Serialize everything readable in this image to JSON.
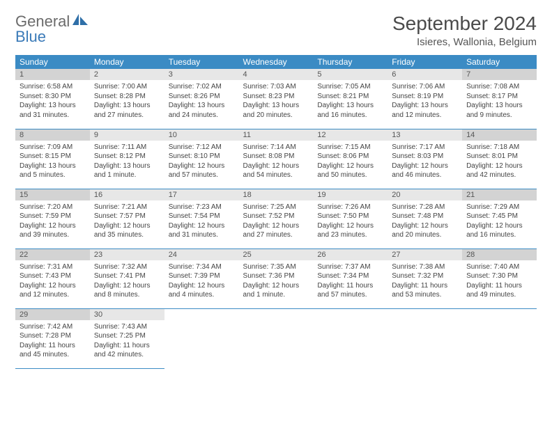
{
  "brand": {
    "part1": "General",
    "part2": "Blue"
  },
  "title": "September 2024",
  "location": "Isieres, Wallonia, Belgium",
  "colors": {
    "header_bg": "#3b8bc4",
    "header_text": "#ffffff",
    "daynum_bg": "#e7e7e7",
    "daynum_shaded_bg": "#d3d3d3",
    "border": "#3b8bc4",
    "text": "#444444",
    "title_text": "#4a4a4a",
    "brand_gray": "#6b6b6b",
    "brand_blue": "#3a7ab8"
  },
  "fonts": {
    "title_size_pt": 21,
    "location_size_pt": 11,
    "dayheader_size_pt": 9,
    "daynum_size_pt": 8,
    "cell_size_pt": 7.5
  },
  "dayNames": [
    "Sunday",
    "Monday",
    "Tuesday",
    "Wednesday",
    "Thursday",
    "Friday",
    "Saturday"
  ],
  "weeks": [
    [
      {
        "num": "1",
        "sunrise": "Sunrise: 6:58 AM",
        "sunset": "Sunset: 8:30 PM",
        "daylight": "Daylight: 13 hours and 31 minutes."
      },
      {
        "num": "2",
        "sunrise": "Sunrise: 7:00 AM",
        "sunset": "Sunset: 8:28 PM",
        "daylight": "Daylight: 13 hours and 27 minutes."
      },
      {
        "num": "3",
        "sunrise": "Sunrise: 7:02 AM",
        "sunset": "Sunset: 8:26 PM",
        "daylight": "Daylight: 13 hours and 24 minutes."
      },
      {
        "num": "4",
        "sunrise": "Sunrise: 7:03 AM",
        "sunset": "Sunset: 8:23 PM",
        "daylight": "Daylight: 13 hours and 20 minutes."
      },
      {
        "num": "5",
        "sunrise": "Sunrise: 7:05 AM",
        "sunset": "Sunset: 8:21 PM",
        "daylight": "Daylight: 13 hours and 16 minutes."
      },
      {
        "num": "6",
        "sunrise": "Sunrise: 7:06 AM",
        "sunset": "Sunset: 8:19 PM",
        "daylight": "Daylight: 13 hours and 12 minutes."
      },
      {
        "num": "7",
        "sunrise": "Sunrise: 7:08 AM",
        "sunset": "Sunset: 8:17 PM",
        "daylight": "Daylight: 13 hours and 9 minutes."
      }
    ],
    [
      {
        "num": "8",
        "sunrise": "Sunrise: 7:09 AM",
        "sunset": "Sunset: 8:15 PM",
        "daylight": "Daylight: 13 hours and 5 minutes."
      },
      {
        "num": "9",
        "sunrise": "Sunrise: 7:11 AM",
        "sunset": "Sunset: 8:12 PM",
        "daylight": "Daylight: 13 hours and 1 minute."
      },
      {
        "num": "10",
        "sunrise": "Sunrise: 7:12 AM",
        "sunset": "Sunset: 8:10 PM",
        "daylight": "Daylight: 12 hours and 57 minutes."
      },
      {
        "num": "11",
        "sunrise": "Sunrise: 7:14 AM",
        "sunset": "Sunset: 8:08 PM",
        "daylight": "Daylight: 12 hours and 54 minutes."
      },
      {
        "num": "12",
        "sunrise": "Sunrise: 7:15 AM",
        "sunset": "Sunset: 8:06 PM",
        "daylight": "Daylight: 12 hours and 50 minutes."
      },
      {
        "num": "13",
        "sunrise": "Sunrise: 7:17 AM",
        "sunset": "Sunset: 8:03 PM",
        "daylight": "Daylight: 12 hours and 46 minutes."
      },
      {
        "num": "14",
        "sunrise": "Sunrise: 7:18 AM",
        "sunset": "Sunset: 8:01 PM",
        "daylight": "Daylight: 12 hours and 42 minutes."
      }
    ],
    [
      {
        "num": "15",
        "sunrise": "Sunrise: 7:20 AM",
        "sunset": "Sunset: 7:59 PM",
        "daylight": "Daylight: 12 hours and 39 minutes."
      },
      {
        "num": "16",
        "sunrise": "Sunrise: 7:21 AM",
        "sunset": "Sunset: 7:57 PM",
        "daylight": "Daylight: 12 hours and 35 minutes."
      },
      {
        "num": "17",
        "sunrise": "Sunrise: 7:23 AM",
        "sunset": "Sunset: 7:54 PM",
        "daylight": "Daylight: 12 hours and 31 minutes."
      },
      {
        "num": "18",
        "sunrise": "Sunrise: 7:25 AM",
        "sunset": "Sunset: 7:52 PM",
        "daylight": "Daylight: 12 hours and 27 minutes."
      },
      {
        "num": "19",
        "sunrise": "Sunrise: 7:26 AM",
        "sunset": "Sunset: 7:50 PM",
        "daylight": "Daylight: 12 hours and 23 minutes."
      },
      {
        "num": "20",
        "sunrise": "Sunrise: 7:28 AM",
        "sunset": "Sunset: 7:48 PM",
        "daylight": "Daylight: 12 hours and 20 minutes."
      },
      {
        "num": "21",
        "sunrise": "Sunrise: 7:29 AM",
        "sunset": "Sunset: 7:45 PM",
        "daylight": "Daylight: 12 hours and 16 minutes."
      }
    ],
    [
      {
        "num": "22",
        "sunrise": "Sunrise: 7:31 AM",
        "sunset": "Sunset: 7:43 PM",
        "daylight": "Daylight: 12 hours and 12 minutes."
      },
      {
        "num": "23",
        "sunrise": "Sunrise: 7:32 AM",
        "sunset": "Sunset: 7:41 PM",
        "daylight": "Daylight: 12 hours and 8 minutes."
      },
      {
        "num": "24",
        "sunrise": "Sunrise: 7:34 AM",
        "sunset": "Sunset: 7:39 PM",
        "daylight": "Daylight: 12 hours and 4 minutes."
      },
      {
        "num": "25",
        "sunrise": "Sunrise: 7:35 AM",
        "sunset": "Sunset: 7:36 PM",
        "daylight": "Daylight: 12 hours and 1 minute."
      },
      {
        "num": "26",
        "sunrise": "Sunrise: 7:37 AM",
        "sunset": "Sunset: 7:34 PM",
        "daylight": "Daylight: 11 hours and 57 minutes."
      },
      {
        "num": "27",
        "sunrise": "Sunrise: 7:38 AM",
        "sunset": "Sunset: 7:32 PM",
        "daylight": "Daylight: 11 hours and 53 minutes."
      },
      {
        "num": "28",
        "sunrise": "Sunrise: 7:40 AM",
        "sunset": "Sunset: 7:30 PM",
        "daylight": "Daylight: 11 hours and 49 minutes."
      }
    ],
    [
      {
        "num": "29",
        "sunrise": "Sunrise: 7:42 AM",
        "sunset": "Sunset: 7:28 PM",
        "daylight": "Daylight: 11 hours and 45 minutes."
      },
      {
        "num": "30",
        "sunrise": "Sunrise: 7:43 AM",
        "sunset": "Sunset: 7:25 PM",
        "daylight": "Daylight: 11 hours and 42 minutes."
      },
      null,
      null,
      null,
      null,
      null
    ]
  ]
}
